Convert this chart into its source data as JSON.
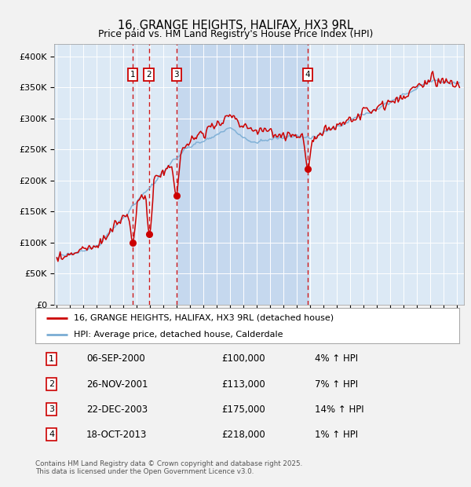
{
  "title": "16, GRANGE HEIGHTS, HALIFAX, HX3 9RL",
  "subtitle": "Price paid vs. HM Land Registry's House Price Index (HPI)",
  "ylim": [
    0,
    420000
  ],
  "xlim_start": 1994.8,
  "xlim_end": 2025.5,
  "background_color": "#dce9f5",
  "shaded_region_color": "#c5d8ee",
  "grid_color": "#ffffff",
  "hpi_color": "#7aadd4",
  "price_color": "#cc0000",
  "transaction_dates": [
    2000.68,
    2001.9,
    2003.97,
    2013.79
  ],
  "transaction_prices": [
    100000,
    113000,
    175000,
    218000
  ],
  "transaction_labels": [
    "1",
    "2",
    "3",
    "4"
  ],
  "vline_color": "#cc0000",
  "box_color": "#cc0000",
  "legend_entries": [
    "16, GRANGE HEIGHTS, HALIFAX, HX3 9RL (detached house)",
    "HPI: Average price, detached house, Calderdale"
  ],
  "table_rows": [
    [
      "1",
      "06-SEP-2000",
      "£100,000",
      "4% ↑ HPI"
    ],
    [
      "2",
      "26-NOV-2001",
      "£113,000",
      "7% ↑ HPI"
    ],
    [
      "3",
      "22-DEC-2003",
      "£175,000",
      "14% ↑ HPI"
    ],
    [
      "4",
      "18-OCT-2013",
      "£218,000",
      "1% ↑ HPI"
    ]
  ],
  "footer": "Contains HM Land Registry data © Crown copyright and database right 2025.\nThis data is licensed under the Open Government Licence v3.0.",
  "fig_width": 6.0,
  "fig_height": 6.2,
  "dpi": 100
}
